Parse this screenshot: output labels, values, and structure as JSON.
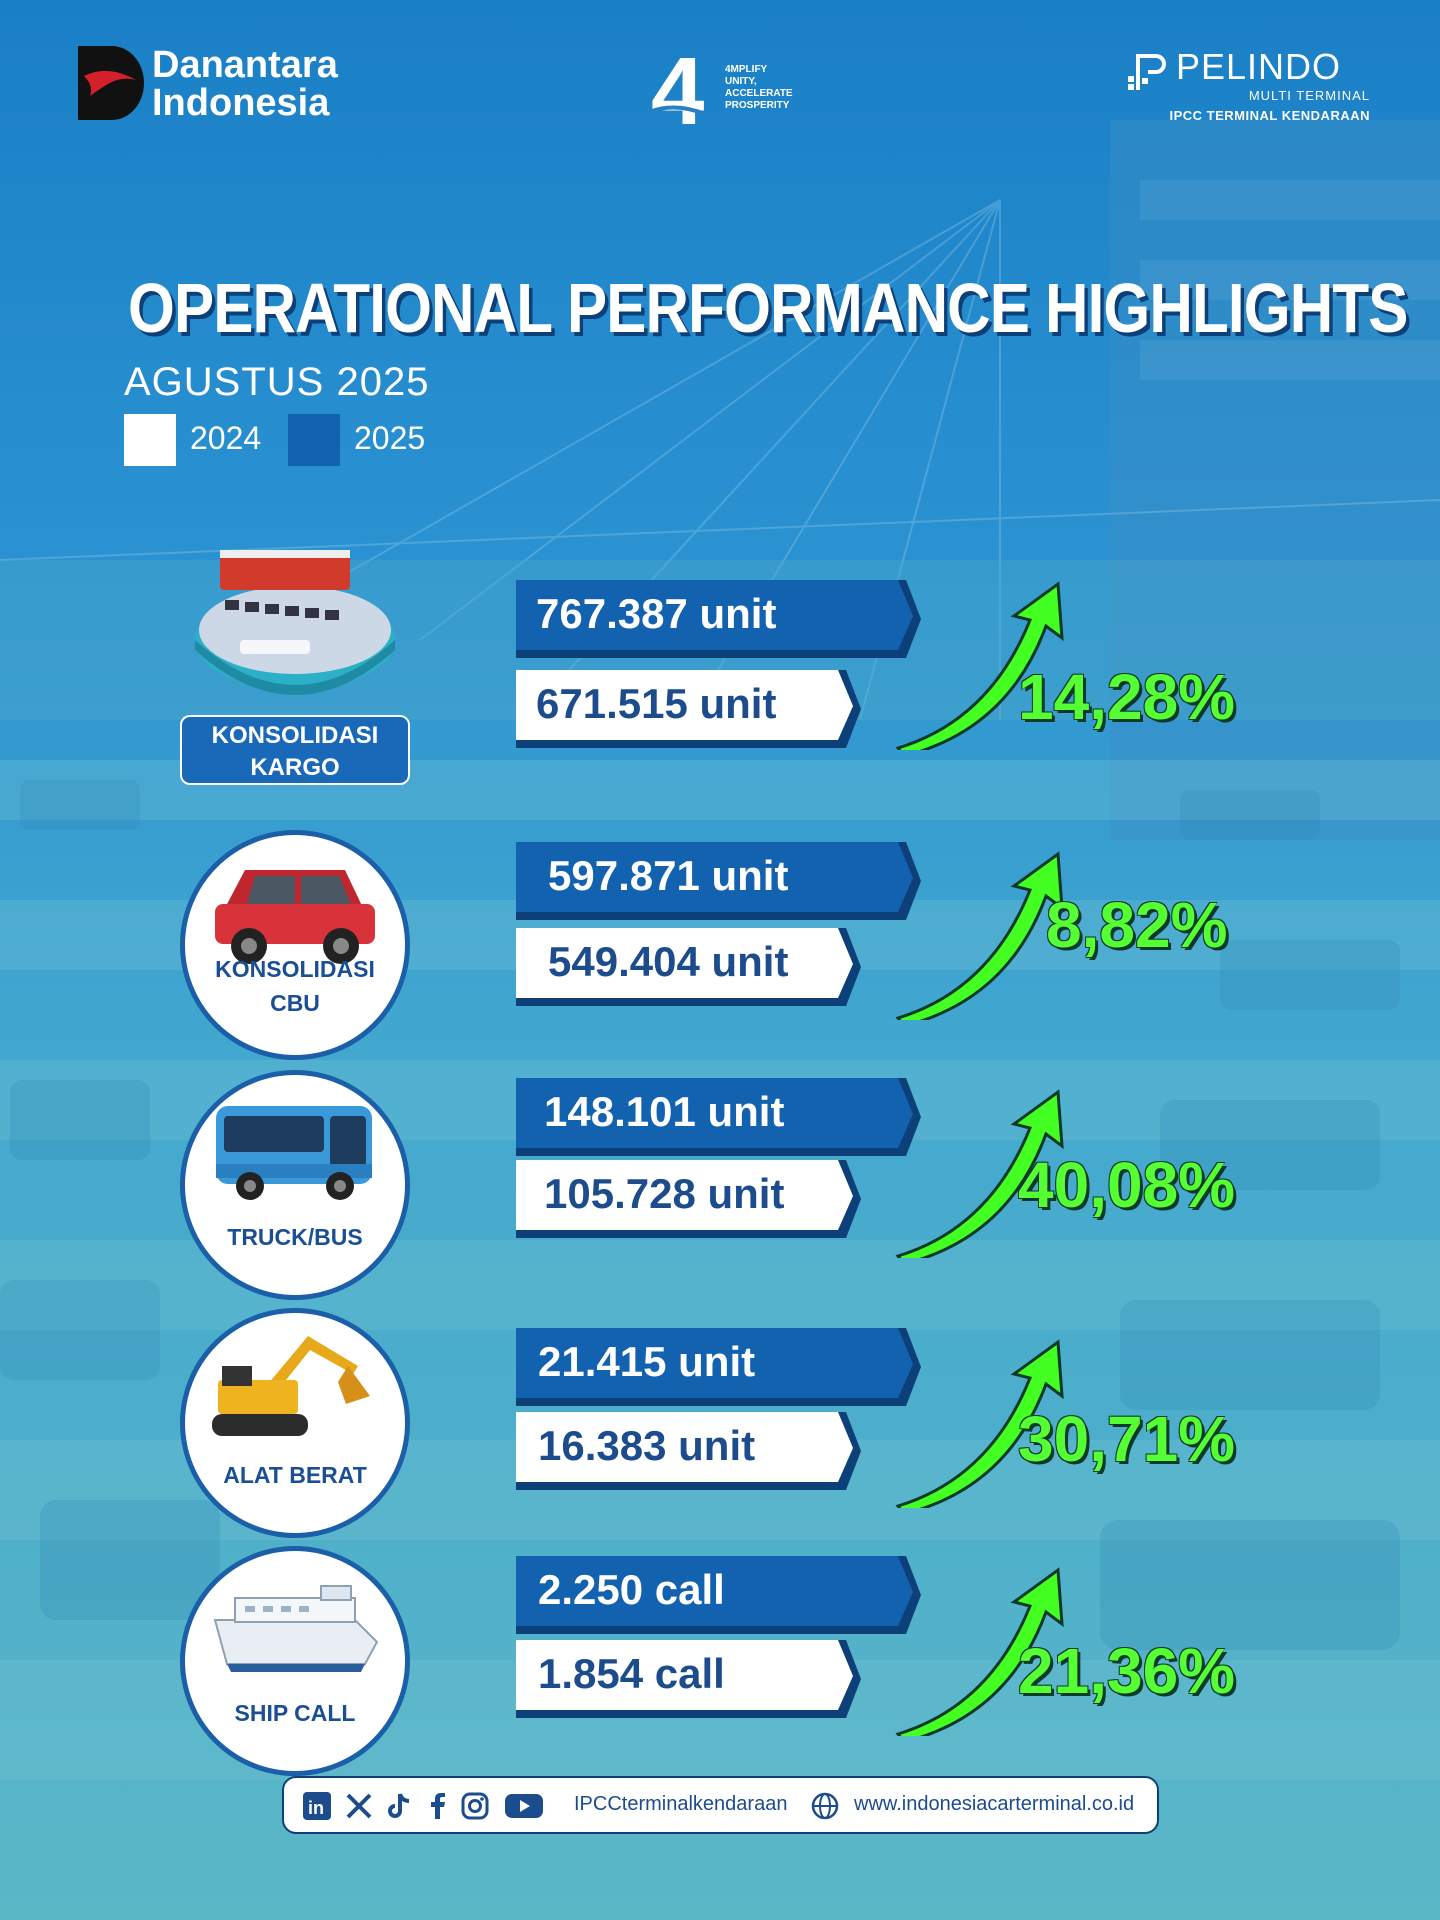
{
  "header": {
    "danantara": {
      "line1": "Danantara",
      "line2": "Indonesia"
    },
    "amplify": {
      "numeral": "4",
      "tagline": "4MPLIFY\nUNITY,\nACCELERATE\nPROSPERITY"
    },
    "pelindo": {
      "name": "PELINDO",
      "sub1": "MULTI TERMINAL",
      "sub2": "IPCC TERMINAL KENDARAAN"
    }
  },
  "title": "OPERATIONAL PERFORMANCE HIGHLIGHTS",
  "subtitle": "AGUSTUS 2025",
  "legend": {
    "y2024": "2024",
    "y2025": "2025"
  },
  "colors": {
    "bar_2025": "#1362b0",
    "bar_2024": "#ffffff",
    "growth": "#55ff33",
    "title_shadow": "#0d3f78"
  },
  "rows": [
    {
      "category": "KONSOLIDASI KARGO",
      "icon": "cargo-terminal-icon",
      "value_2025": "767.387 unit",
      "value_2024": "671.515 unit",
      "growth": "14,28%"
    },
    {
      "category": "KONSOLIDASI CBU",
      "icon": "red-suv-car-icon",
      "value_2025": "597.871 unit",
      "value_2024": "549.404 unit",
      "growth": "8,82%"
    },
    {
      "category": "TRUCK/BUS",
      "icon": "blue-bus-icon",
      "value_2025": "148.101 unit",
      "value_2024": "105.728 unit",
      "growth": "40,08%"
    },
    {
      "category": "ALAT BERAT",
      "icon": "excavator-icon",
      "value_2025": "21.415 unit",
      "value_2024": "16.383 unit",
      "growth": "30,71%"
    },
    {
      "category": "SHIP CALL",
      "icon": "car-carrier-ship-icon",
      "value_2025": "2.250 call",
      "value_2024": "1.854 call",
      "growth": "21,36%"
    }
  ],
  "footer": {
    "social_icons": [
      "linkedin-icon",
      "x-icon",
      "tiktok-icon",
      "facebook-icon",
      "instagram-icon",
      "youtube-icon"
    ],
    "handle": "IPCCterminalkendaraan",
    "website": "www.indonesiacarterminal.co.id"
  }
}
